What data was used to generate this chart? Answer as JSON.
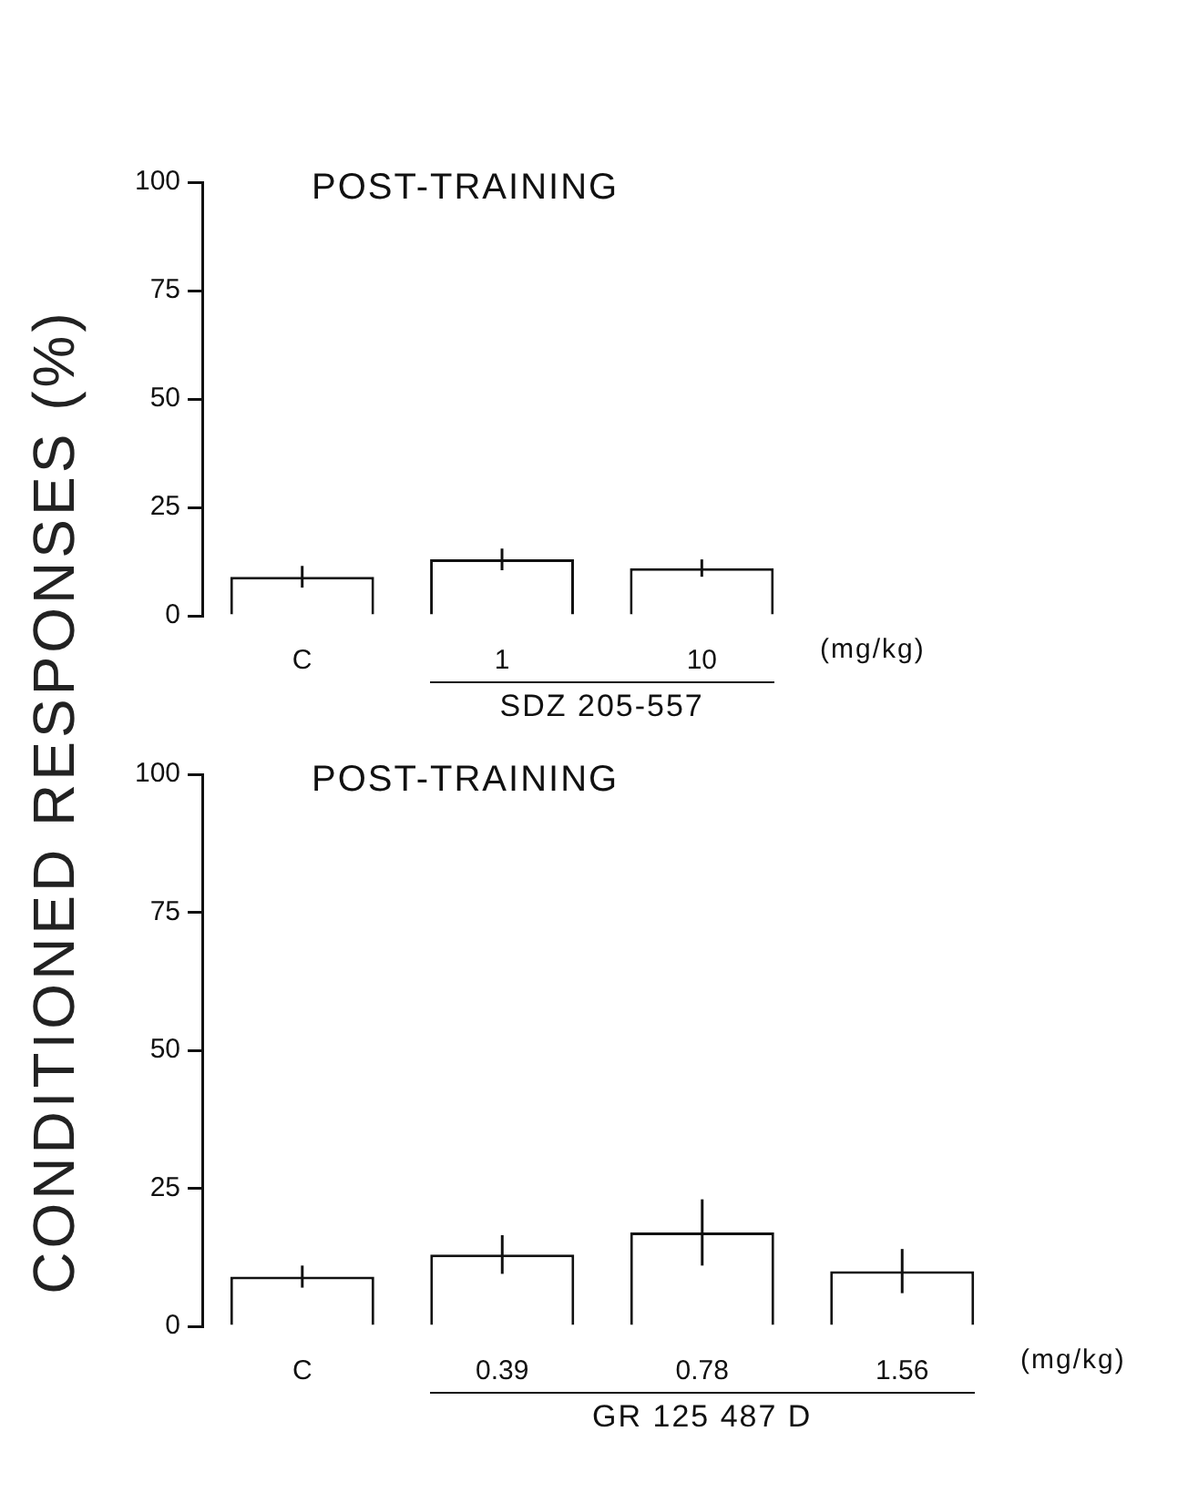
{
  "chart_data": [
    {
      "type": "bar",
      "title": "POST-TRAINING",
      "ylabel": "CONDITIONED RESPONSES (%)",
      "categories": [
        "C",
        "1",
        "10"
      ],
      "values": [
        9,
        13,
        11
      ],
      "errors": [
        2.5,
        2.5,
        2
      ],
      "color": "#ffffff",
      "ylim": [
        0,
        100
      ],
      "yticks": [
        0,
        25,
        50,
        75,
        100
      ],
      "grid": false,
      "legend": false,
      "annotations": [
        "(mg/kg)",
        "SDZ 205-557"
      ]
    },
    {
      "type": "bar",
      "title": "POST-TRAINING",
      "categories": [
        "C",
        "0.39",
        "0.78",
        "1.56"
      ],
      "values": [
        9,
        13,
        17,
        10
      ],
      "errors": [
        2,
        3.5,
        6,
        4
      ],
      "color": "#ffffff",
      "ylim": [
        0,
        100
      ],
      "yticks": [
        0,
        25,
        50,
        75,
        100
      ],
      "grid": false,
      "legend": false,
      "annotations": [
        "(mg/kg)",
        "GR 125 487 D"
      ]
    }
  ]
}
